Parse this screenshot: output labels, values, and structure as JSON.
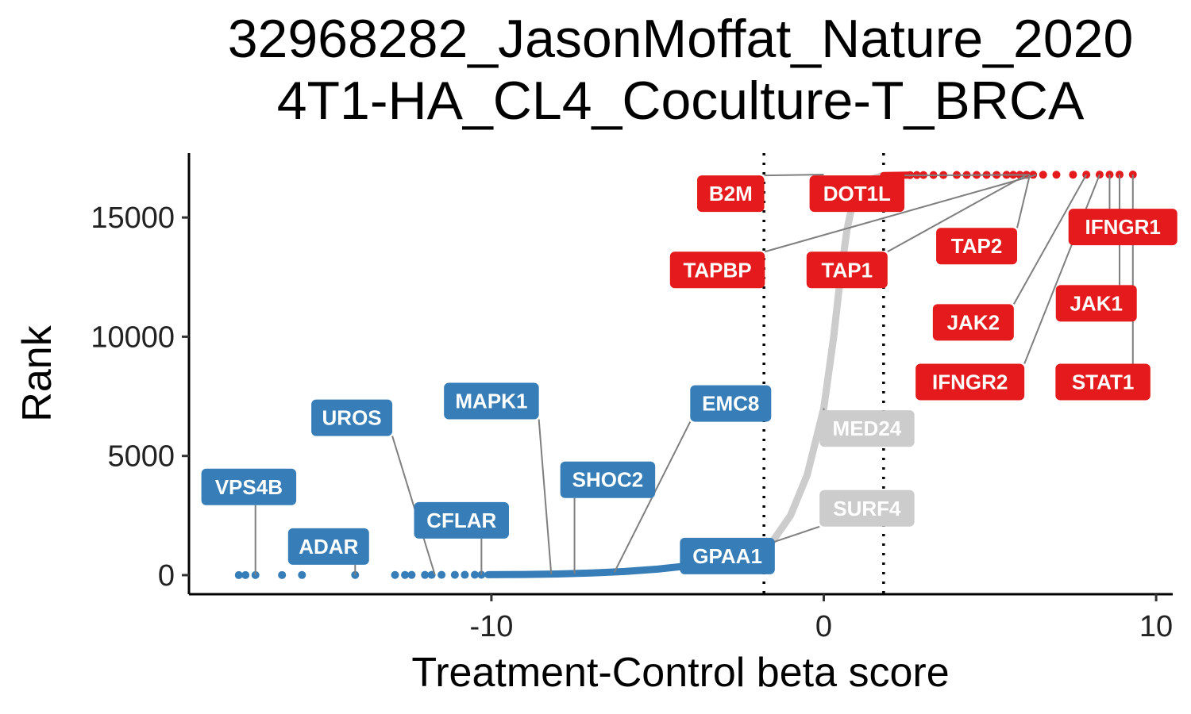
{
  "chart_data": {
    "type": "scatter",
    "title": [
      "32968282_JasonMoffat_Nature_2020",
      "4T1-HA_CL4_Coculture-T_BRCA"
    ],
    "xlabel": "Treatment-Control beta score",
    "ylabel": "Rank",
    "xlim": [
      -19.1,
      10.5
    ],
    "ylim": [
      -800,
      17700
    ],
    "x_ticks": [
      -10,
      0,
      10
    ],
    "x_tick_labels": [
      "-10",
      "0",
      "10"
    ],
    "y_ticks": [
      0,
      5000,
      10000,
      15000
    ],
    "y_tick_labels": [
      "0",
      "5000",
      "10000",
      "15000"
    ],
    "threshold_lines_x": [
      -1.8,
      1.8
    ],
    "grid": false,
    "legend": "none",
    "colors": {
      "negative": "#377EB8",
      "positive": "#E41A1C",
      "neutral": "#CCCCCC"
    },
    "series": [
      {
        "group": "negative",
        "points": [
          {
            "x": -17.6,
            "y": 1
          },
          {
            "x": -17.4,
            "y": 2
          },
          {
            "x": -17.1,
            "y": 3
          },
          {
            "x": -16.3,
            "y": 4
          },
          {
            "x": -15.7,
            "y": 5
          },
          {
            "x": -14.1,
            "y": 6
          },
          {
            "x": -12.9,
            "y": 7
          },
          {
            "x": -12.6,
            "y": 8
          },
          {
            "x": -12.4,
            "y": 9
          },
          {
            "x": -12.0,
            "y": 10
          },
          {
            "x": -11.8,
            "y": 11
          },
          {
            "x": -11.5,
            "y": 12
          },
          {
            "x": -11.1,
            "y": 13
          },
          {
            "x": -10.8,
            "y": 14
          },
          {
            "x": -10.5,
            "y": 15
          },
          {
            "x": -10.3,
            "y": 16
          }
        ],
        "trend": [
          [
            -10.1,
            20
          ],
          [
            -9.0,
            30
          ],
          [
            -8.0,
            50
          ],
          [
            -7.0,
            90
          ],
          [
            -6.0,
            150
          ],
          [
            -5.0,
            250
          ],
          [
            -4.0,
            400
          ],
          [
            -3.0,
            650
          ],
          [
            -2.0,
            1000
          ],
          [
            -1.75,
            1100
          ]
        ]
      },
      {
        "group": "neutral",
        "trend": [
          [
            -1.75,
            1150
          ],
          [
            -1.5,
            1500
          ],
          [
            -1.0,
            2500
          ],
          [
            -0.5,
            4200
          ],
          [
            0.0,
            7000
          ],
          [
            0.3,
            10000
          ],
          [
            0.5,
            12500
          ],
          [
            0.7,
            14500
          ],
          [
            0.9,
            15800
          ],
          [
            1.2,
            16500
          ],
          [
            1.75,
            16750
          ]
        ]
      },
      {
        "group": "positive",
        "points": [
          {
            "x": 9.3,
            "y": 16800
          },
          {
            "x": 8.9,
            "y": 16799
          },
          {
            "x": 8.6,
            "y": 16798
          },
          {
            "x": 8.3,
            "y": 16797
          },
          {
            "x": 7.9,
            "y": 16796
          },
          {
            "x": 7.5,
            "y": 16795
          },
          {
            "x": 7.0,
            "y": 16794
          },
          {
            "x": 6.6,
            "y": 16793
          },
          {
            "x": 6.3,
            "y": 16792
          },
          {
            "x": 6.1,
            "y": 16791
          },
          {
            "x": 5.9,
            "y": 16790
          },
          {
            "x": 5.7,
            "y": 16789
          },
          {
            "x": 5.5,
            "y": 16788
          },
          {
            "x": 5.2,
            "y": 16787
          },
          {
            "x": 4.9,
            "y": 16786
          },
          {
            "x": 4.6,
            "y": 16785
          },
          {
            "x": 4.3,
            "y": 16784
          },
          {
            "x": 4.0,
            "y": 16783
          },
          {
            "x": 3.6,
            "y": 16782
          },
          {
            "x": 3.3,
            "y": 16781
          },
          {
            "x": 3.0,
            "y": 16780
          },
          {
            "x": 2.8,
            "y": 16779
          },
          {
            "x": 2.6,
            "y": 16778
          }
        ],
        "trend": [
          [
            1.8,
            16760
          ],
          [
            2.2,
            16770
          ],
          [
            2.6,
            16778
          ]
        ]
      }
    ],
    "labels": [
      {
        "text": "VPS4B",
        "group": "negative",
        "x": -17.1,
        "y": 3,
        "lx": -17.3,
        "ly": 3700
      },
      {
        "text": "ADAR",
        "group": "negative",
        "x": -14.1,
        "y": 6,
        "lx": -14.9,
        "ly": 1200
      },
      {
        "text": "UROS",
        "group": "negative",
        "x": -11.7,
        "y": 11,
        "lx": -14.2,
        "ly": 6600
      },
      {
        "text": "CFLAR",
        "group": "negative",
        "x": -10.3,
        "y": 16,
        "lx": -10.9,
        "ly": 2300
      },
      {
        "text": "MAPK1",
        "group": "negative",
        "x": -8.2,
        "y": 40,
        "lx": -10.0,
        "ly": 7300
      },
      {
        "text": "SHOC2",
        "group": "negative",
        "x": -7.5,
        "y": 60,
        "lx": -6.5,
        "ly": 4000
      },
      {
        "text": "EMC8",
        "group": "negative",
        "x": -6.3,
        "y": 120,
        "lx": -2.8,
        "ly": 7200
      },
      {
        "text": "GPAA1",
        "group": "negative",
        "x": -1.8,
        "y": 1100,
        "lx": -2.9,
        "ly": 800
      },
      {
        "text": "MED24",
        "group": "neutral",
        "x": 0.0,
        "y": 7000,
        "lx": 1.3,
        "ly": 6150
      },
      {
        "text": "SURF4",
        "group": "neutral",
        "x": -1.7,
        "y": 1300,
        "lx": 1.3,
        "ly": 2800
      },
      {
        "text": "B2M",
        "group": "positive",
        "x": 0.0,
        "y": 16800,
        "lx": -2.8,
        "ly": 16000
      },
      {
        "text": "DOT1L",
        "group": "positive",
        "x": 6.2,
        "y": 16791,
        "lx": 1.0,
        "ly": 16000
      },
      {
        "text": "TAPBP",
        "group": "positive",
        "x": 6.4,
        "y": 16792,
        "lx": -3.2,
        "ly": 12800
      },
      {
        "text": "TAP1",
        "group": "positive",
        "x": 6.1,
        "y": 16791,
        "lx": 0.7,
        "ly": 12800
      },
      {
        "text": "TAP2",
        "group": "positive",
        "x": 6.2,
        "y": 16791,
        "lx": 4.6,
        "ly": 13800
      },
      {
        "text": "IFNGR1",
        "group": "positive",
        "x": 8.6,
        "y": 16798,
        "lx": 9.0,
        "ly": 14600
      },
      {
        "text": "JAK2",
        "group": "positive",
        "x": 7.9,
        "y": 16796,
        "lx": 4.5,
        "ly": 10600
      },
      {
        "text": "JAK1",
        "group": "positive",
        "x": 8.9,
        "y": 16799,
        "lx": 8.2,
        "ly": 11400
      },
      {
        "text": "IFNGR2",
        "group": "positive",
        "x": 8.3,
        "y": 16797,
        "lx": 4.4,
        "ly": 8100
      },
      {
        "text": "STAT1",
        "group": "positive",
        "x": 9.3,
        "y": 16800,
        "lx": 8.4,
        "ly": 8100
      }
    ]
  }
}
